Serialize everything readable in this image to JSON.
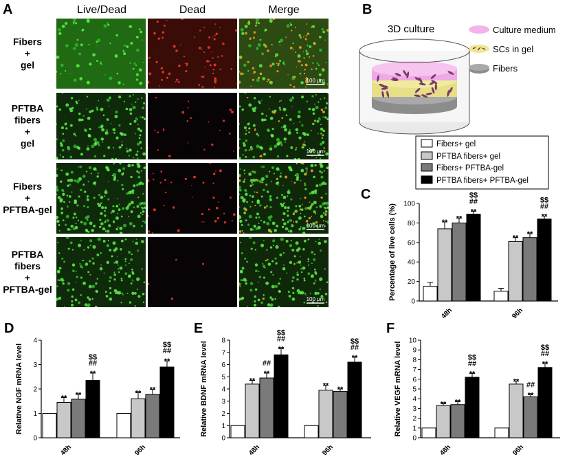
{
  "panel_letters": [
    "A",
    "B",
    "C",
    "D",
    "E",
    "F"
  ],
  "panel_a": {
    "columns": [
      "Live/Dead",
      "Dead",
      "Merge"
    ],
    "rows": [
      [
        "Fibers",
        "+",
        "gel"
      ],
      [
        "PFTBA",
        "fibers",
        "+",
        "gel"
      ],
      [
        "Fibers",
        "+",
        "PFTBA-gel"
      ],
      [
        "PFTBA",
        "fibers",
        "+",
        "PFTBA-gel"
      ]
    ],
    "scale_label": "100 μm",
    "colors": {
      "live": "#2fb82c",
      "dead": "#d63222",
      "background": "#0a0f08"
    }
  },
  "panel_b": {
    "title": "3D culture",
    "legend": [
      "Culture medium",
      "SCs in gel",
      "Fibers"
    ],
    "colors": {
      "medium": "#f4b3ea",
      "gel": "#efe792",
      "fibers": "#9a9a9a",
      "cells": "#7a3a6a"
    }
  },
  "legend": {
    "entries": [
      "Fibers+ gel",
      "PFTBA fibers+ gel",
      "Fibers+ PFTBA-gel",
      "PFTBA fibers+ PFTBA-gel"
    ],
    "colors": [
      "#ffffff",
      "#c8c8c8",
      "#7a7a7a",
      "#000000"
    ]
  },
  "chart_data": [
    {
      "type": "bar",
      "panel": "C",
      "categories": [
        "48h",
        "96h"
      ],
      "ylabel": "Percentage of live cells (%)",
      "ylim": [
        0,
        100
      ],
      "yticks": [
        0,
        20,
        40,
        60,
        80,
        100
      ],
      "series": [
        {
          "name": "Fibers+ gel",
          "values": [
            15,
            10
          ],
          "errors": [
            4,
            3
          ]
        },
        {
          "name": "PFTBA fibers+ gel",
          "values": [
            74,
            61
          ],
          "errors": [
            7,
            4
          ]
        },
        {
          "name": "Fibers+ PFTBA-gel",
          "values": [
            80,
            65
          ],
          "errors": [
            5,
            4
          ]
        },
        {
          "name": "PFTBA fibers+ PFTBA-gel",
          "values": [
            89,
            84
          ],
          "errors": [
            3,
            3
          ]
        }
      ],
      "annotations": [
        [
          "",
          "",
          ""
        ],
        [
          "**"
        ],
        [
          "**"
        ],
        [
          "**",
          "##",
          "$$"
        ]
      ],
      "significance": [
        [
          [],
          [
            "**"
          ],
          [
            "**"
          ],
          [
            "**",
            "##",
            "$$"
          ]
        ],
        [
          [],
          [
            "**"
          ],
          [
            "**"
          ],
          [
            "**",
            "##",
            "$$"
          ]
        ]
      ]
    },
    {
      "type": "bar",
      "panel": "D",
      "categories": [
        "48h",
        "96h"
      ],
      "ylabel": "Relative NGF mRNA level",
      "ylim": [
        0,
        4
      ],
      "yticks": [
        0,
        1,
        2,
        3,
        4
      ],
      "series": [
        {
          "name": "Fibers+ gel",
          "values": [
            1.0,
            1.0
          ],
          "errors": [
            0,
            0
          ]
        },
        {
          "name": "PFTBA fibers+ gel",
          "values": [
            1.45,
            1.6
          ],
          "errors": [
            0.2,
            0.25
          ]
        },
        {
          "name": "Fibers+ PFTBA-gel",
          "values": [
            1.58,
            1.78
          ],
          "errors": [
            0.2,
            0.2
          ]
        },
        {
          "name": "PFTBA fibers+ PFTBA-gel",
          "values": [
            2.35,
            2.9
          ],
          "errors": [
            0.3,
            0.25
          ]
        }
      ],
      "significance": [
        [
          [],
          [
            "**"
          ],
          [
            "**"
          ],
          [
            "**",
            "##",
            "$$"
          ]
        ],
        [
          [],
          [
            "**"
          ],
          [
            "**"
          ],
          [
            "**",
            "##",
            "$$"
          ]
        ]
      ]
    },
    {
      "type": "bar",
      "panel": "E",
      "categories": [
        "48h",
        "96h"
      ],
      "ylabel": "Relative BDNF mRNA level",
      "ylim": [
        0,
        8
      ],
      "yticks": [
        0,
        1,
        2,
        3,
        4,
        5,
        6,
        7,
        8
      ],
      "series": [
        {
          "name": "Fibers+ gel",
          "values": [
            1.0,
            1.0
          ],
          "errors": [
            0,
            0
          ]
        },
        {
          "name": "PFTBA fibers+ gel",
          "values": [
            4.4,
            3.9
          ],
          "errors": [
            0.3,
            0.4
          ]
        },
        {
          "name": "Fibers+ PFTBA-gel",
          "values": [
            4.9,
            3.8
          ],
          "errors": [
            0.4,
            0.2
          ]
        },
        {
          "name": "PFTBA fibers+ PFTBA-gel",
          "values": [
            6.8,
            6.2
          ],
          "errors": [
            0.5,
            0.4
          ]
        }
      ],
      "significance": [
        [
          [],
          [
            "**"
          ],
          [
            "**",
            "##"
          ],
          [
            "**",
            "##",
            "$$"
          ]
        ],
        [
          [],
          [
            "**"
          ],
          [
            "**"
          ],
          [
            "**",
            "##",
            "$$"
          ]
        ]
      ]
    },
    {
      "type": "bar",
      "panel": "F",
      "categories": [
        "48h",
        "96h"
      ],
      "ylabel": "Relative VEGF mRNA level",
      "ylim": [
        0,
        10
      ],
      "yticks": [
        0,
        1,
        2,
        3,
        4,
        5,
        6,
        7,
        8,
        9,
        10
      ],
      "series": [
        {
          "name": "Fibers+ gel",
          "values": [
            1.0,
            1.0
          ],
          "errors": [
            0,
            0
          ]
        },
        {
          "name": "PFTBA fibers+ gel",
          "values": [
            3.3,
            5.5
          ],
          "errors": [
            0.2,
            0.3
          ]
        },
        {
          "name": "Fibers+ PFTBA-gel",
          "values": [
            3.4,
            4.2
          ],
          "errors": [
            0.3,
            0.2
          ]
        },
        {
          "name": "PFTBA fibers+ PFTBA-gel",
          "values": [
            6.2,
            7.2
          ],
          "errors": [
            0.4,
            0.4
          ]
        }
      ],
      "significance": [
        [
          [],
          [
            "**"
          ],
          [
            "**"
          ],
          [
            "**",
            "##",
            "$$"
          ]
        ],
        [
          [],
          [
            "**"
          ],
          [
            "**",
            "##"
          ],
          [
            "**",
            "##",
            "$$"
          ]
        ]
      ]
    }
  ]
}
